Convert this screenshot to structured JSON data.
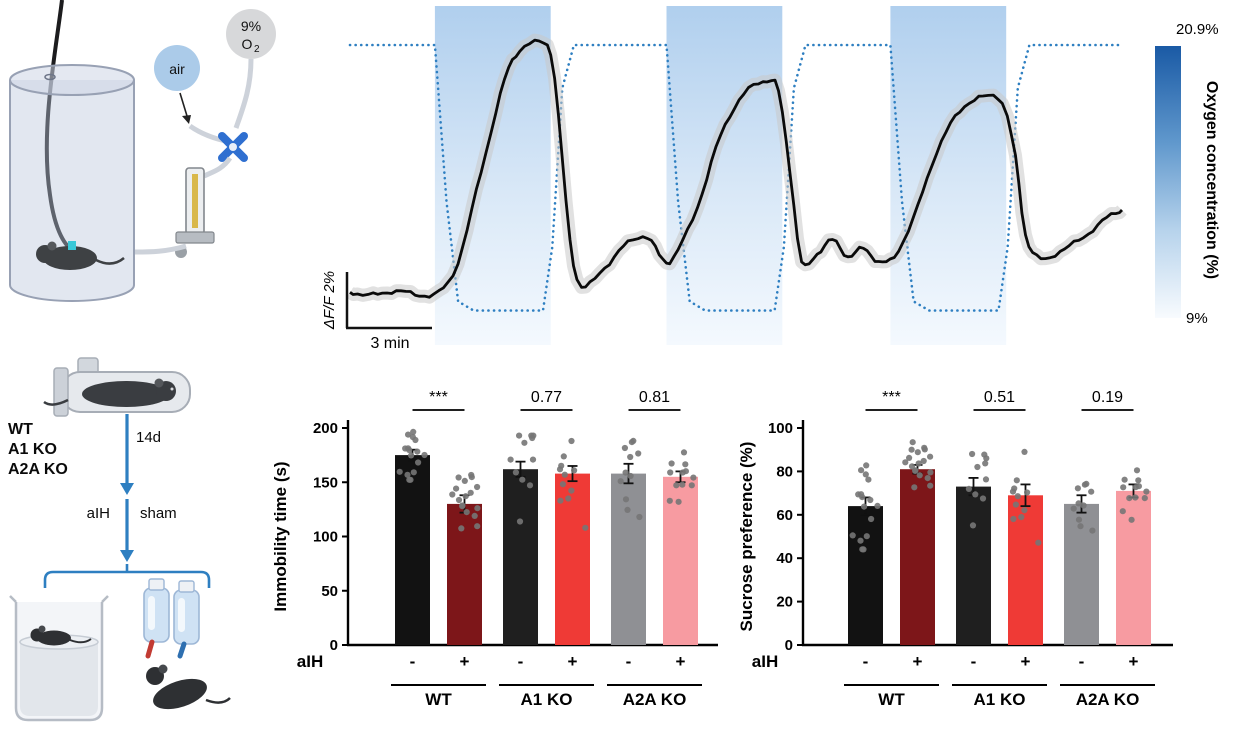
{
  "meta": {
    "accent_blue": "#2e7fc1",
    "band_blue_top": "#b0cfee",
    "colorbar_top_color": "#1a5aa5",
    "background": "#ffffff"
  },
  "setup_panel": {
    "air_label": "air",
    "o2_percent_label": "9%",
    "o2_symbol": "O",
    "o2_subscript": "2"
  },
  "trace_panel": {
    "y_scalebar_label": "ΔF/F 2%",
    "x_scalebar_label": "3 min",
    "colorbar_title": "Oxygen concentration (%)",
    "colorbar_top_label": "20.9%",
    "colorbar_bottom_label": "9%"
  },
  "protocol_panel": {
    "genotypes": [
      "WT",
      "A1 KO",
      "A2A KO"
    ],
    "duration_label": "14d",
    "left_arm_label": "aIH",
    "right_arm_label": "sham"
  },
  "chart_data": [
    {
      "type": "line",
      "title": "Fluorescence trace during acute intermittent hypoxia",
      "y_scalebar": "ΔF/F 2%",
      "x_scalebar": "3 min",
      "o2_range": [
        9,
        20.9
      ],
      "hypoxia_bands_x": [
        [
          0.11,
          0.26
        ],
        [
          0.41,
          0.56
        ],
        [
          0.7,
          0.85
        ]
      ],
      "series": [
        {
          "name": "oxygen_concentration_percent",
          "style": "dotted-blue",
          "points": [
            [
              0,
              20.9
            ],
            [
              0.11,
              20.9
            ],
            [
              0.125,
              14
            ],
            [
              0.14,
              9.6
            ],
            [
              0.16,
              9.2
            ],
            [
              0.25,
              9.2
            ],
            [
              0.262,
              12
            ],
            [
              0.275,
              19
            ],
            [
              0.29,
              20.9
            ],
            [
              0.41,
              20.9
            ],
            [
              0.425,
              14
            ],
            [
              0.44,
              9.6
            ],
            [
              0.46,
              9.2
            ],
            [
              0.55,
              9.2
            ],
            [
              0.562,
              12
            ],
            [
              0.575,
              19
            ],
            [
              0.59,
              20.9
            ],
            [
              0.7,
              20.9
            ],
            [
              0.715,
              14
            ],
            [
              0.73,
              9.6
            ],
            [
              0.75,
              9.2
            ],
            [
              0.84,
              9.2
            ],
            [
              0.852,
              12
            ],
            [
              0.865,
              19
            ],
            [
              0.88,
              20.9
            ],
            [
              1,
              20.9
            ]
          ]
        },
        {
          "name": "dF_F_percent",
          "style": "solid-black-with-sem",
          "points": [
            [
              0,
              0.1
            ],
            [
              0.03,
              0
            ],
            [
              0.06,
              0.15
            ],
            [
              0.09,
              0
            ],
            [
              0.115,
              0.1
            ],
            [
              0.14,
              1.2
            ],
            [
              0.17,
              4.5
            ],
            [
              0.2,
              7.8
            ],
            [
              0.22,
              8.9
            ],
            [
              0.245,
              9.2
            ],
            [
              0.26,
              8.8
            ],
            [
              0.27,
              6.5
            ],
            [
              0.285,
              2.0
            ],
            [
              0.3,
              0.3
            ],
            [
              0.33,
              1.0
            ],
            [
              0.36,
              1.9
            ],
            [
              0.385,
              2.1
            ],
            [
              0.405,
              1.3
            ],
            [
              0.42,
              1.4
            ],
            [
              0.45,
              3.2
            ],
            [
              0.48,
              5.8
            ],
            [
              0.51,
              7.3
            ],
            [
              0.54,
              7.8
            ],
            [
              0.555,
              7.4
            ],
            [
              0.57,
              4.5
            ],
            [
              0.585,
              1.2
            ],
            [
              0.605,
              1.5
            ],
            [
              0.625,
              2.0
            ],
            [
              0.645,
              1.4
            ],
            [
              0.665,
              1.7
            ],
            [
              0.685,
              1.2
            ],
            [
              0.705,
              1.4
            ],
            [
              0.73,
              2.8
            ],
            [
              0.76,
              5.2
            ],
            [
              0.79,
              6.7
            ],
            [
              0.82,
              7.2
            ],
            [
              0.845,
              7.0
            ],
            [
              0.862,
              5.0
            ],
            [
              0.875,
              2.2
            ],
            [
              0.895,
              1.3
            ],
            [
              0.92,
              1.6
            ],
            [
              0.95,
              2.1
            ],
            [
              0.98,
              2.8
            ],
            [
              1,
              3.1
            ]
          ]
        }
      ]
    },
    {
      "type": "bar",
      "panel": "forced_swim_test",
      "ylabel": "Immobility time (s)",
      "ylim": [
        0,
        200
      ],
      "yticks": [
        0,
        50,
        100,
        150,
        200
      ],
      "x_axis_label": "aIH",
      "conditions": [
        "-",
        "+"
      ],
      "groups": [
        "WT",
        "A1 KO",
        "A2A KO"
      ],
      "significance": [
        "***",
        "0.77",
        "0.81"
      ],
      "bars": [
        [
          {
            "value": 175,
            "sem": 5,
            "n": 16,
            "dot_range": [
              143,
              200
            ],
            "color": "#121212"
          },
          {
            "value": 130,
            "sem": 8,
            "n": 17,
            "dot_range": [
              72,
              172
            ],
            "color": "#7d1619"
          }
        ],
        [
          {
            "value": 162,
            "sem": 7,
            "n": 11,
            "dot_range": [
              88,
              193
            ],
            "color": "#1f1f1f"
          },
          {
            "value": 158,
            "sem": 7,
            "n": 11,
            "dot_range": [
              92,
              188
            ],
            "color": "#ef3a36"
          }
        ],
        [
          {
            "value": 158,
            "sem": 9,
            "n": 11,
            "dot_range": [
              55,
              192
            ],
            "color": "#8f9094"
          },
          {
            "value": 155,
            "sem": 5,
            "n": 12,
            "dot_range": [
              132,
              196
            ],
            "color": "#f79ba1"
          }
        ]
      ]
    },
    {
      "type": "bar",
      "panel": "sucrose_preference_test",
      "ylabel": "Sucrose preference (%)",
      "ylim": [
        0,
        100
      ],
      "yticks": [
        0,
        20,
        40,
        60,
        80,
        100
      ],
      "x_axis_label": "aIH",
      "conditions": [
        "-",
        "+"
      ],
      "groups": [
        "WT",
        "A1 KO",
        "A2A KO"
      ],
      "significance": [
        "***",
        "0.51",
        "0.19"
      ],
      "bars": [
        [
          {
            "value": 64,
            "sem": 4,
            "n": 16,
            "dot_range": [
              37,
              87
            ],
            "color": "#121212"
          },
          {
            "value": 81,
            "sem": 2,
            "n": 18,
            "dot_range": [
              57,
              94
            ],
            "color": "#7d1619"
          }
        ],
        [
          {
            "value": 73,
            "sem": 4,
            "n": 10,
            "dot_range": [
              49,
              88
            ],
            "color": "#1f1f1f"
          },
          {
            "value": 69,
            "sem": 5,
            "n": 11,
            "dot_range": [
              47,
              89
            ],
            "color": "#ef3a36"
          }
        ],
        [
          {
            "value": 65,
            "sem": 4,
            "n": 10,
            "dot_range": [
              47,
              89
            ],
            "color": "#8f9094"
          },
          {
            "value": 71,
            "sem": 3,
            "n": 12,
            "dot_range": [
              57,
              84
            ],
            "color": "#f79ba1"
          }
        ]
      ]
    }
  ]
}
